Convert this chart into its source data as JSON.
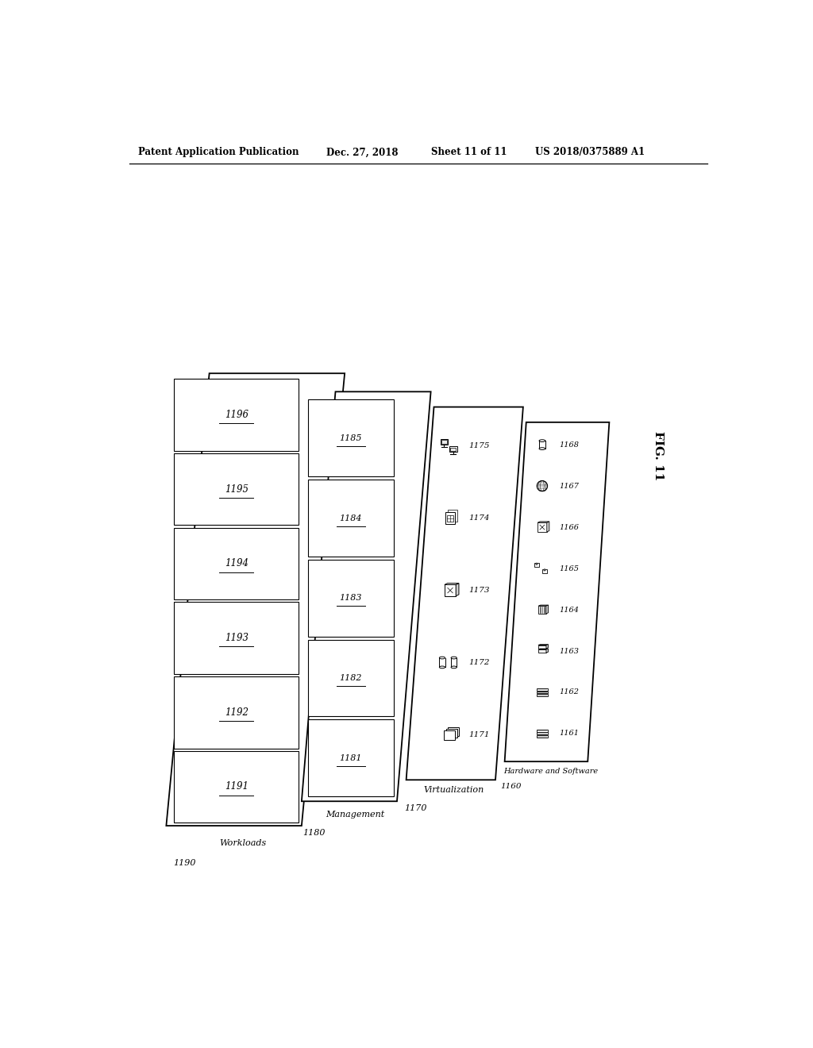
{
  "title_left": "Patent Application Publication",
  "title_date": "Dec. 27, 2018",
  "title_sheet": "Sheet 11 of 11",
  "title_patent": "US 2018/0375889 A1",
  "fig_label": "FIG. 11",
  "background_color": "#ffffff",
  "text_color": "#000000",
  "planes": [
    {
      "label": "Workloads",
      "id": "1190"
    },
    {
      "label": "Management",
      "id": "1180"
    },
    {
      "label": "Virtualization",
      "id": "1170"
    },
    {
      "label": "Hardware and Software",
      "id": "1160"
    }
  ],
  "workload_boxes": [
    "1191",
    "1192",
    "1193",
    "1194",
    "1195",
    "1196"
  ],
  "management_boxes": [
    "1181",
    "1182",
    "1183",
    "1184",
    "1185"
  ],
  "virtualization_items": [
    "1171",
    "1172",
    "1173",
    "1174",
    "1175"
  ],
  "hw_items": [
    "1161",
    "1162",
    "1163",
    "1164",
    "1165",
    "1166",
    "1167",
    "1168"
  ]
}
